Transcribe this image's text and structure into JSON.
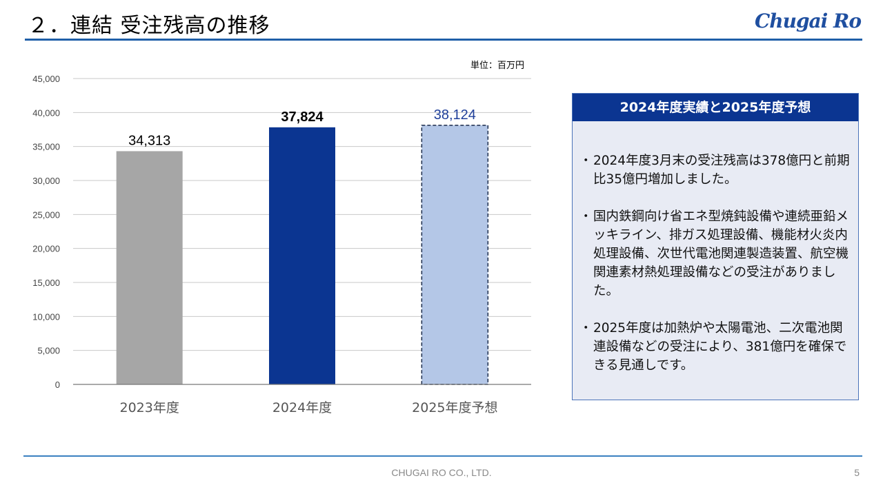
{
  "header": {
    "title": "２．連結 受注残高の推移",
    "logo_text": "Chugai Ro"
  },
  "chart_unit": "単位：百万円",
  "chart_data": {
    "type": "bar",
    "title": "",
    "xlabel": "",
    "ylabel": "",
    "categories": [
      "2023年度",
      "2024年度",
      "2025年度予想"
    ],
    "values": [
      34313,
      37824,
      38124
    ],
    "value_labels": [
      "34,313",
      "37,824",
      "38,124"
    ],
    "y_ticks": [
      "0",
      "5,000",
      "10,000",
      "15,000",
      "20,000",
      "25,000",
      "30,000",
      "35,000",
      "40,000",
      "45,000"
    ],
    "ylim": [
      0,
      45000
    ],
    "grid": true,
    "bar_colors": [
      "#a6a6a6",
      "#0b3591",
      "#b4c7e7"
    ],
    "forecast_bar_index": 2
  },
  "panel": {
    "title": "2024年度実績と2025年度予想",
    "bullets": [
      "2024年度3月末の受注残高は378億円と前期比35億円増加しました。",
      "国内鉄鋼向け省エネ型焼鈍設備や連続亜鉛メッキライン、排ガス処理設備、機能材火炎内処理設備、次世代電池関連製造装置、航空機関連素材熱処理設備などの受注がありました。",
      "2025年度は加熱炉や太陽電池、二次電池関連設備などの受注により、381億円を確保できる見通しです。"
    ]
  },
  "footer": {
    "company": "CHUGAI RO CO., LTD.",
    "page": "5"
  },
  "colors": {
    "accent": "#1f5fa8",
    "panel_header": "#0b3591",
    "panel_bg": "#e8ebf4"
  }
}
